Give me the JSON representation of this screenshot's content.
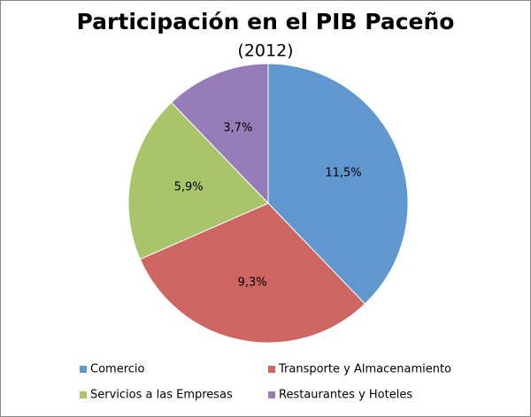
{
  "chart_data": {
    "type": "pie",
    "title": "Participación en el PIB Paceño",
    "subtitle": "(2012)",
    "categories": [
      "Comercio",
      "Transporte y Almacenamiento",
      "Servicios a las Empresas",
      "Restaurantes y Hoteles"
    ],
    "values": [
      11.5,
      9.3,
      5.9,
      3.7
    ],
    "value_labels": [
      "11,5%",
      "9,3%",
      "5,9%",
      "3,7%"
    ],
    "colors": [
      "#5f97ce",
      "#cd6660",
      "#a8c56c",
      "#967dba"
    ],
    "legend": "bottom"
  }
}
